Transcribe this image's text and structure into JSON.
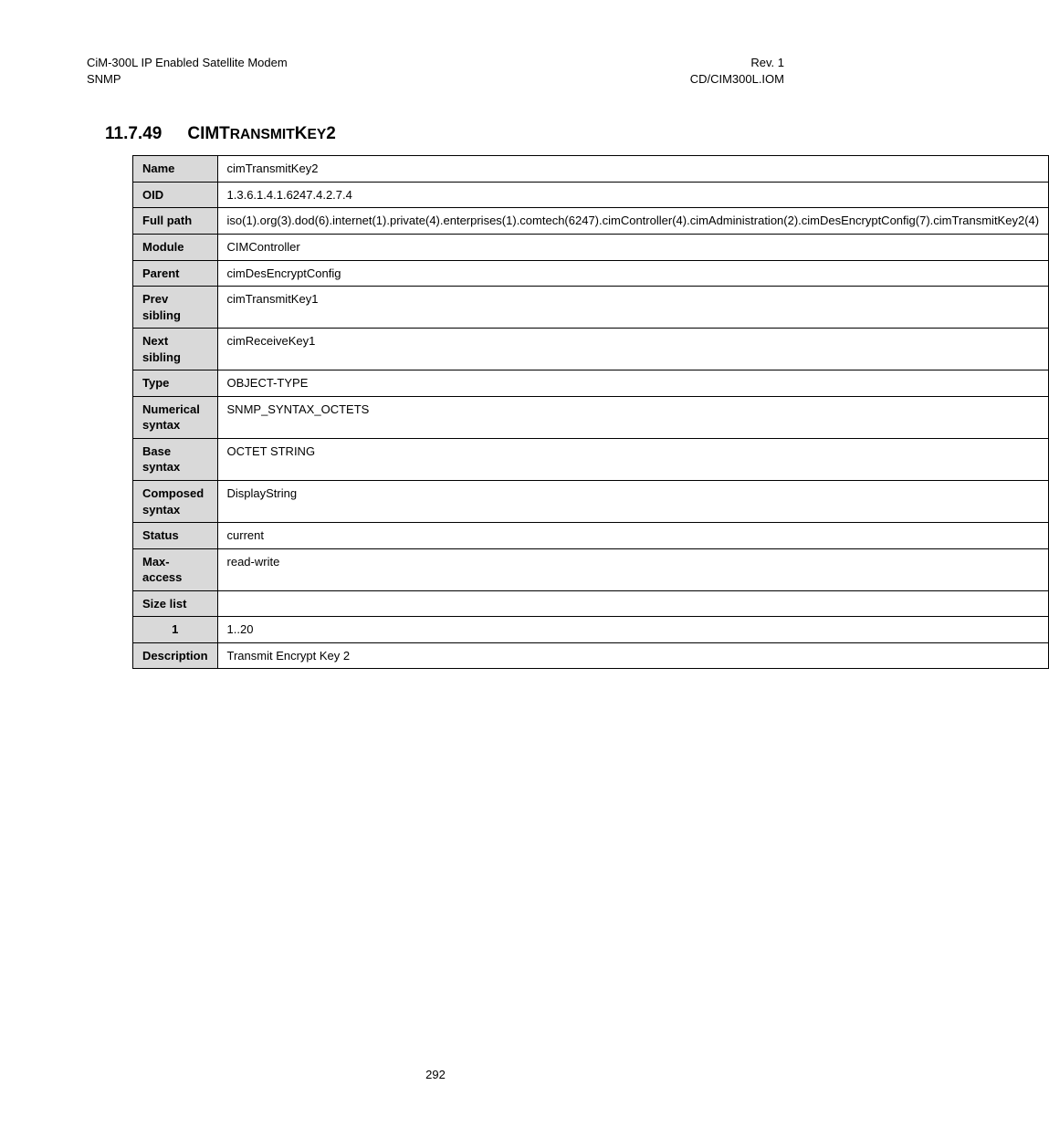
{
  "header": {
    "left_line1": "CiM-300L IP Enabled Satellite Modem",
    "left_line2": "SNMP",
    "right_line1": "Rev. 1",
    "right_line2": "CD/CIM300L.IOM"
  },
  "section": {
    "number": "11.7.49",
    "title_prefix_upper": "CIM",
    "title_mid1_upper": "T",
    "title_mid1_lower": "RANSMIT",
    "title_mid2_upper": "K",
    "title_mid2_lower": "EY",
    "title_suffix": "2"
  },
  "table": {
    "rows": [
      {
        "label": "Name",
        "value": "cimTransmitKey2"
      },
      {
        "label": "OID",
        "value": "1.3.6.1.4.1.6247.4.2.7.4"
      },
      {
        "label": "Full path",
        "value": "iso(1).org(3).dod(6).internet(1).private(4).enterprises(1).comtech(6247).cimController(4).cimAdministration(2).cimDesEncryptConfig(7).cimTransmitKey2(4)"
      },
      {
        "label": "Module",
        "value": "CIMController"
      },
      {
        "label": "Parent",
        "value": "cimDesEncryptConfig"
      },
      {
        "label": "Prev sibling",
        "value": "cimTransmitKey1"
      },
      {
        "label": "Next sibling",
        "value": "cimReceiveKey1"
      },
      {
        "label": "Type",
        "value": "OBJECT-TYPE"
      },
      {
        "label": "Numerical syntax",
        "value": "SNMP_SYNTAX_OCTETS"
      },
      {
        "label": "Base syntax",
        "value": "OCTET STRING"
      },
      {
        "label": "Composed syntax",
        "value": "DisplayString"
      },
      {
        "label": "Status",
        "value": "current"
      },
      {
        "label": "Max-access",
        "value": "read-write"
      },
      {
        "label": "Size list",
        "value": ""
      },
      {
        "label": "1",
        "value": "1..20",
        "indent": true
      },
      {
        "label": "Description",
        "value": "Transmit Encrypt Key 2"
      }
    ]
  },
  "page_number": "292"
}
